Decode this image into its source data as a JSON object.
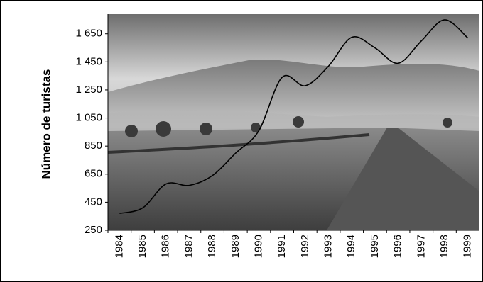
{
  "chart_data": {
    "type": "line",
    "y_label": "Número de turistas",
    "categories": [
      "1984",
      "1985",
      "1986",
      "1987",
      "1988",
      "1989",
      "1990",
      "1991",
      "1992",
      "1993",
      "1994",
      "1995",
      "1996",
      "1997",
      "1998",
      "1999"
    ],
    "series": [
      {
        "name": "Número de turistas",
        "color": "#000000",
        "values": [
          370,
          410,
          580,
          570,
          640,
          800,
          960,
          1340,
          1280,
          1420,
          1625,
          1550,
          1440,
          1600,
          1750,
          1620
        ]
      }
    ],
    "ylim": [
      250,
      1790
    ],
    "yticks": [
      250,
      450,
      650,
      850,
      {
        "value": 1050,
        "label": "1 050"
      },
      {
        "value": 1250,
        "label": "1 250"
      },
      {
        "value": 1450,
        "label": "1 450"
      },
      {
        "value": 1650,
        "label": "1 650"
      }
    ],
    "smooth": true
  }
}
